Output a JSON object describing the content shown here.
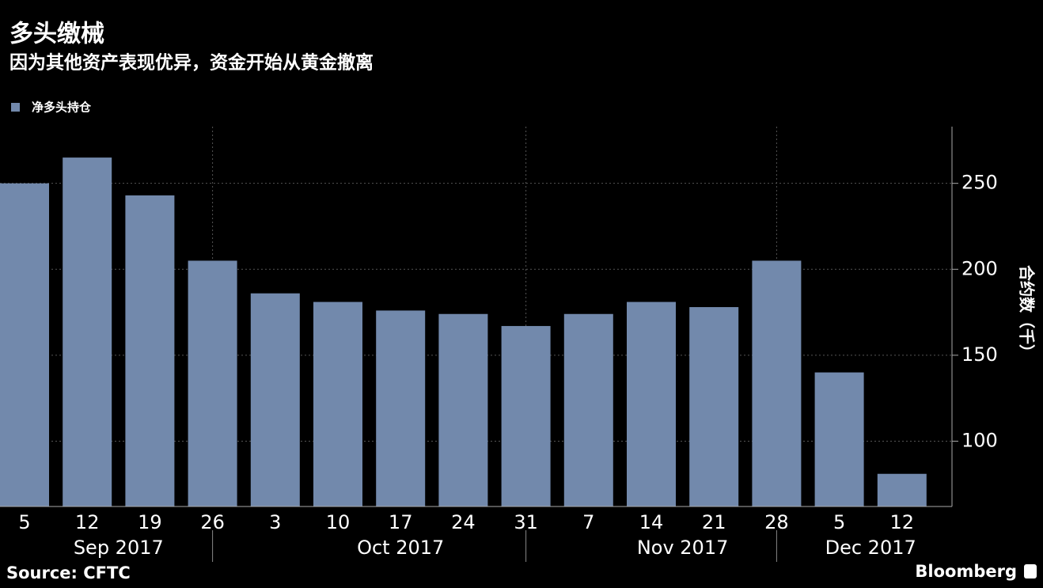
{
  "chart_data": {
    "type": "bar",
    "title": "多头缴械",
    "subtitle": "因为其他资产表现优异，资金开始从黄金撤离",
    "series": [
      {
        "name": "净多头持仓",
        "color": "#7289ac",
        "values": [
          250,
          265,
          243,
          205,
          186,
          181,
          176,
          174,
          167,
          174,
          181,
          178,
          205,
          140,
          81
        ]
      }
    ],
    "categories": [
      "5",
      "12",
      "19",
      "26",
      "3",
      "10",
      "17",
      "24",
      "31",
      "7",
      "14",
      "21",
      "28",
      "5",
      "12"
    ],
    "month_labels": [
      "Sep 2017",
      "Oct 2017",
      "Nov 2017",
      "Dec 2017"
    ],
    "y_label": "合约数（千）",
    "ylim": [
      62,
      283
    ],
    "yticks": [
      100,
      150,
      200,
      250
    ],
    "grid": true,
    "source": "Source:  CFTC",
    "brand": "Bloomberg"
  }
}
